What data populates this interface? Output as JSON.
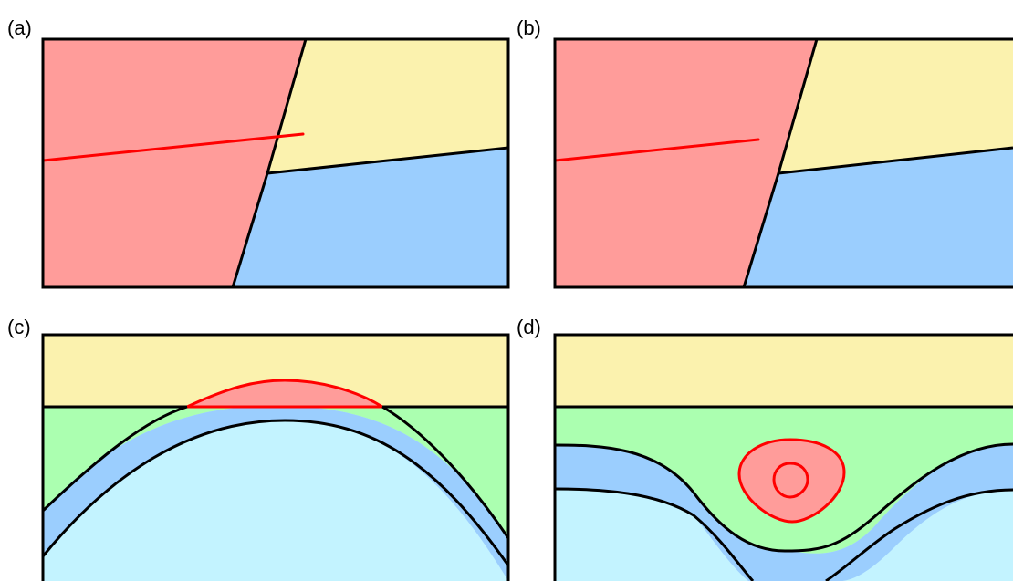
{
  "labels": {
    "a": "(a)",
    "b": "(b)",
    "c": "(c)",
    "d": "(d)"
  },
  "colors": {
    "red_region": "#ff9c9a",
    "yellow_region": "#fbf2ae",
    "blue_region": "#9bcefe",
    "green_region": "#abffb0",
    "light_blue_region": "#c3f3ff",
    "red_line": "#ff0000",
    "outline": "#000000"
  }
}
